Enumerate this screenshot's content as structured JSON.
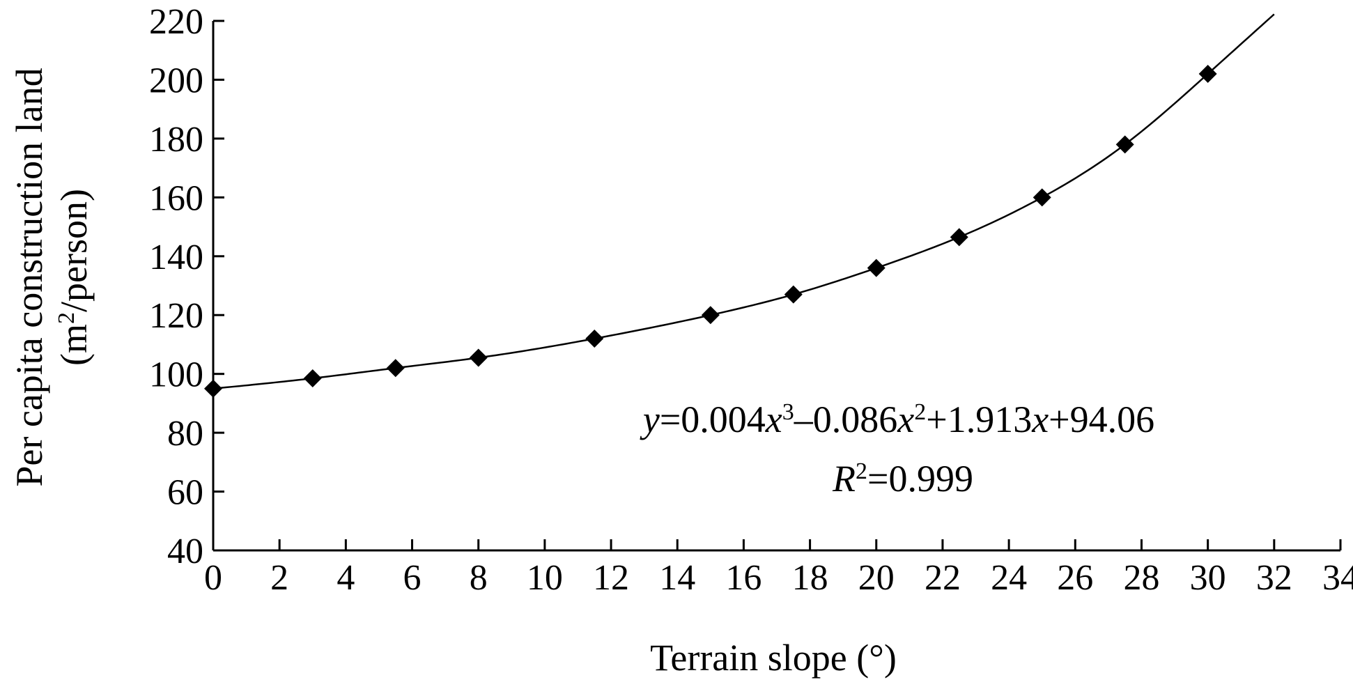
{
  "chart_data": {
    "type": "scatter",
    "title": "",
    "xlabel": "Terrain slope (°)",
    "ylabel": {
      "line1": "Per capita construction land",
      "line2_prefix": "(m",
      "line2_sup": "2",
      "line2_suffix": "/person)"
    },
    "xlim": [
      0,
      34
    ],
    "ylim": [
      40,
      220
    ],
    "x_ticks": [
      0,
      2,
      4,
      6,
      8,
      10,
      12,
      14,
      16,
      18,
      20,
      22,
      24,
      26,
      28,
      30,
      32,
      34
    ],
    "y_ticks": [
      40,
      60,
      80,
      100,
      120,
      140,
      160,
      180,
      200,
      220
    ],
    "grid": false,
    "legend": "none",
    "series": [
      {
        "marker": "diamond",
        "color": "#000000",
        "points": [
          {
            "x": 0,
            "y": 95
          },
          {
            "x": 3,
            "y": 98.5
          },
          {
            "x": 5.5,
            "y": 102
          },
          {
            "x": 8,
            "y": 105.5
          },
          {
            "x": 11.5,
            "y": 112
          },
          {
            "x": 15,
            "y": 120
          },
          {
            "x": 17.5,
            "y": 127
          },
          {
            "x": 20,
            "y": 136
          },
          {
            "x": 22.5,
            "y": 146.5
          },
          {
            "x": 25,
            "y": 160
          },
          {
            "x": 27.5,
            "y": 178
          },
          {
            "x": 30,
            "y": 202
          }
        ]
      }
    ],
    "trendline": {
      "type": "polynomial",
      "x_range": [
        0,
        32
      ],
      "color": "#000000"
    },
    "annotation": {
      "equation": {
        "y": "y",
        "eq1": "=0.004",
        "x1": "x",
        "p1": "3",
        "t2": "–0.086",
        "x2": "x",
        "p2": "2",
        "t3": "+1.913",
        "x3": "x",
        "t4": "+94.06"
      },
      "r2": {
        "r": "R",
        "p": "2",
        "val": "=0.999"
      }
    }
  }
}
